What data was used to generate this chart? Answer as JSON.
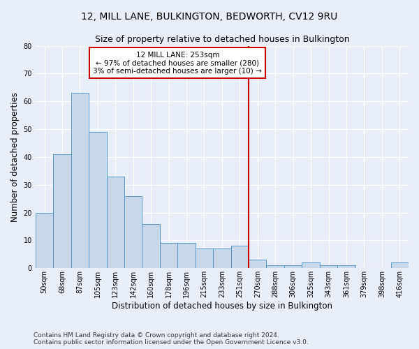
{
  "title": "12, MILL LANE, BULKINGTON, BEDWORTH, CV12 9RU",
  "subtitle": "Size of property relative to detached houses in Bulkington",
  "xlabel": "Distribution of detached houses by size in Bulkington",
  "ylabel": "Number of detached properties",
  "categories": [
    "50sqm",
    "68sqm",
    "87sqm",
    "105sqm",
    "123sqm",
    "142sqm",
    "160sqm",
    "178sqm",
    "196sqm",
    "215sqm",
    "233sqm",
    "251sqm",
    "270sqm",
    "288sqm",
    "306sqm",
    "325sqm",
    "343sqm",
    "361sqm",
    "379sqm",
    "398sqm",
    "416sqm"
  ],
  "values": [
    20,
    41,
    63,
    49,
    33,
    26,
    16,
    9,
    9,
    7,
    7,
    8,
    3,
    1,
    1,
    2,
    1,
    1,
    0,
    0,
    2
  ],
  "bar_color": "#c8d8e8",
  "bar_edge_color": "#5599cc",
  "background_color": "#e8eef8",
  "grid_color": "#ffffff",
  "vline_x": 11.5,
  "vline_color": "#cc0000",
  "annotation_text": "12 MILL LANE: 253sqm\n← 97% of detached houses are smaller (280)\n3% of semi-detached houses are larger (10) →",
  "annotation_box_color": "#cc0000",
  "footer": "Contains HM Land Registry data © Crown copyright and database right 2024.\nContains public sector information licensed under the Open Government Licence v3.0.",
  "ylim": [
    0,
    80
  ],
  "title_fontsize": 10,
  "subtitle_fontsize": 9,
  "ylabel_fontsize": 8.5,
  "xlabel_fontsize": 8.5,
  "tick_fontsize": 7,
  "annotation_fontsize": 7.5,
  "footer_fontsize": 6.5
}
